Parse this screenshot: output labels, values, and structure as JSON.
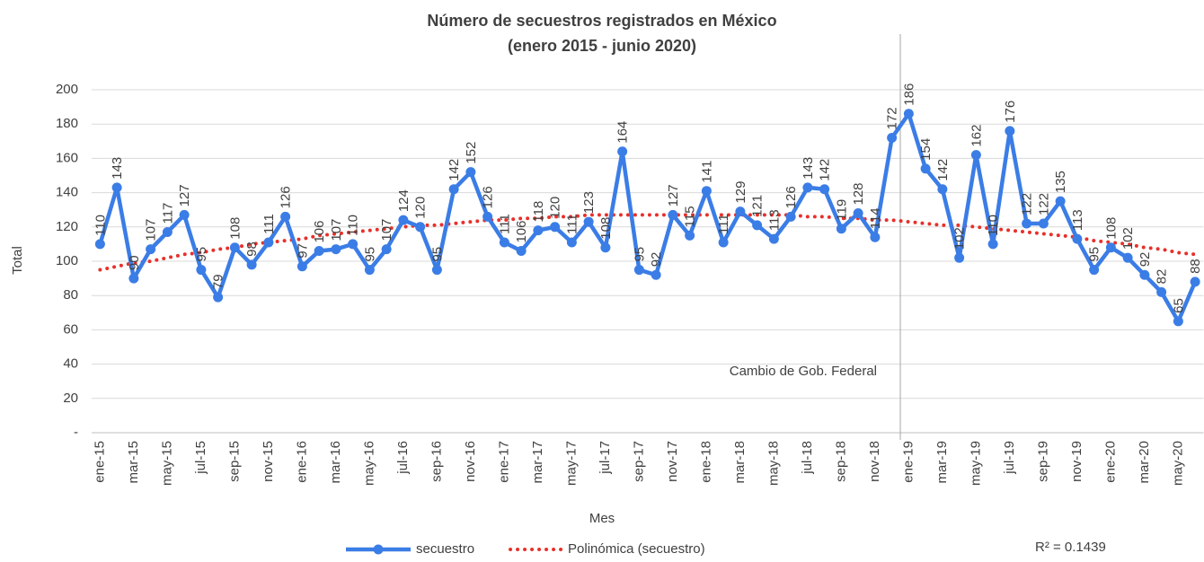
{
  "chart_data": {
    "type": "line",
    "title": "Número de secuestros registrados en México",
    "subtitle": "(enero 2015 - junio 2020)",
    "x_label": "Mes",
    "y_label": "Total",
    "categories": [
      "ene-15",
      null,
      "mar-15",
      null,
      "may-15",
      null,
      "jul-15",
      null,
      "sep-15",
      null,
      "nov-15",
      null,
      "ene-16",
      null,
      "mar-16",
      null,
      "may-16",
      null,
      "jul-16",
      null,
      "sep-16",
      null,
      "nov-16",
      null,
      "ene-17",
      null,
      "mar-17",
      null,
      "may-17",
      null,
      "jul-17",
      null,
      "sep-17",
      null,
      "nov-17",
      null,
      "ene-18",
      null,
      "mar-18",
      null,
      "may-18",
      null,
      "jul-18",
      null,
      "sep-18",
      null,
      "nov-18",
      null,
      "ene-19",
      null,
      "mar-19",
      null,
      "may-19",
      null,
      "jul-19",
      null,
      "sep-19",
      null,
      "nov-19",
      null,
      "ene-20",
      null,
      "mar-20",
      null,
      "may-20",
      null
    ],
    "series": [
      {
        "name": "secuestro",
        "color": "#3b7de6",
        "values": [
          110,
          143,
          90,
          107,
          117,
          127,
          95,
          79,
          108,
          98,
          111,
          126,
          97,
          106,
          107,
          110,
          95,
          107,
          124,
          120,
          95,
          142,
          152,
          126,
          111,
          106,
          118,
          120,
          111,
          123,
          108,
          164,
          95,
          92,
          127,
          115,
          141,
          111,
          129,
          121,
          113,
          126,
          143,
          142,
          119,
          128,
          114,
          172,
          186,
          154,
          142,
          102,
          162,
          110,
          176,
          122,
          122,
          135,
          113,
          95,
          108,
          102,
          92,
          82,
          65,
          88
        ]
      },
      {
        "name": "Polinómica (secuestro)",
        "color": "#e8302a",
        "dotted": true,
        "values": [
          95,
          97,
          99,
          100,
          102,
          104,
          105,
          107,
          108,
          110,
          111,
          112,
          113,
          115,
          116,
          117,
          118,
          119,
          120,
          121,
          121,
          122,
          123,
          124,
          124,
          125,
          125,
          126,
          126,
          127,
          127,
          127,
          127,
          127,
          127,
          127,
          127,
          127,
          127,
          127,
          127,
          127,
          126,
          126,
          125,
          125,
          124,
          124,
          123,
          122,
          121,
          121,
          120,
          119,
          118,
          117,
          116,
          115,
          114,
          112,
          111,
          110,
          108,
          107,
          105,
          104
        ]
      }
    ],
    "ylim": [
      0,
      200
    ],
    "yticks": [
      {
        "value": 0,
        "label": "-"
      },
      20,
      40,
      60,
      80,
      100,
      120,
      140,
      160,
      180,
      200
    ],
    "grid": true,
    "data_labels": true,
    "legend": "bottom",
    "annotations": [
      {
        "text": "Cambio de Gob. Federal"
      },
      {
        "text": "R² = 0.1439"
      }
    ]
  }
}
